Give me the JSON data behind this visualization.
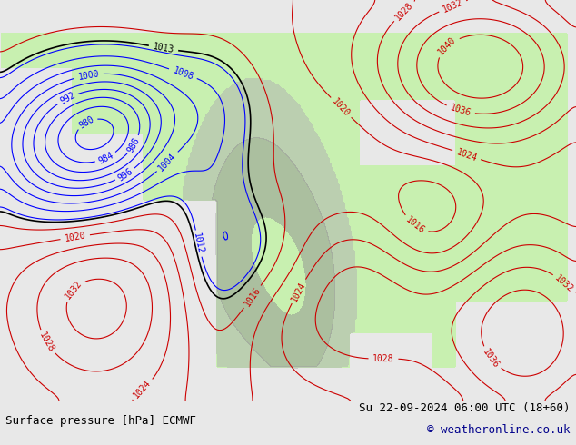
{
  "title_left": "Surface pressure [hPa] ECMWF",
  "title_right": "Su 22-09-2024 06:00 UTC (18+60)",
  "copyright": "© weatheronline.co.uk",
  "bg_color": "#e8e8e8",
  "land_color": "#c8f0b0",
  "water_color": "#e8e8e8",
  "border_color": "#606060",
  "contour_color_low": "#0000ff",
  "contour_color_high": "#cc0000",
  "contour_color_1013": "#000000",
  "label_fontsize": 7,
  "footer_fontsize": 9,
  "figsize": [
    6.34,
    4.9
  ],
  "dpi": 100
}
